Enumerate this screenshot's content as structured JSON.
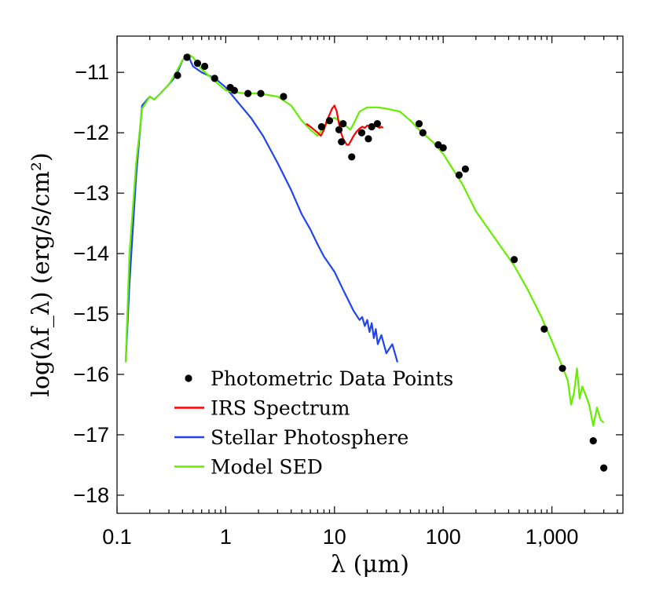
{
  "chart_data": {
    "type": "line",
    "xlabel": "λ (μm)",
    "ylabel": "log(λf_λ) (erg/s/cm²)",
    "xscale": "log",
    "xlim": [
      0.1,
      4500
    ],
    "ylim": [
      -18.3,
      -10.4
    ],
    "x_ticks": [
      0.1,
      1,
      10,
      100,
      1000
    ],
    "x_tick_labels": [
      "0.1",
      "1",
      "10",
      "100",
      "1,000"
    ],
    "y_ticks": [
      -11,
      -12,
      -13,
      -14,
      -15,
      -16,
      -17,
      -18
    ],
    "y_tick_labels": [
      "−11",
      "−12",
      "−13",
      "−14",
      "−15",
      "−16",
      "−17",
      "−18"
    ],
    "legend": {
      "position": "lower-left",
      "entries": [
        {
          "label": "Photometric Data Points",
          "marker": "dot",
          "color": "#000000"
        },
        {
          "label": "IRS Spectrum",
          "marker": "line",
          "color": "#ff0000"
        },
        {
          "label": "Stellar Photosphere",
          "marker": "line",
          "color": "#2244ee"
        },
        {
          "label": "Model SED",
          "marker": "line",
          "color": "#66ee00"
        }
      ]
    },
    "series": [
      {
        "name": "Photometric Data Points",
        "kind": "scatter",
        "color": "#000000",
        "x": [
          0.36,
          0.44,
          0.55,
          0.64,
          0.79,
          1.1,
          1.2,
          1.6,
          2.1,
          3.4,
          7.6,
          9.0,
          11.0,
          11.6,
          12.0,
          14.4,
          17.8,
          20.5,
          22.0,
          24.8,
          60,
          65,
          90,
          100,
          140,
          160,
          450,
          850,
          1250,
          2400,
          3000
        ],
        "y": [
          -11.05,
          -10.75,
          -10.85,
          -10.9,
          -11.1,
          -11.25,
          -11.3,
          -11.35,
          -11.35,
          -11.4,
          -11.9,
          -11.8,
          -11.95,
          -12.15,
          -11.85,
          -12.4,
          -12.0,
          -12.1,
          -11.9,
          -11.85,
          -11.85,
          -12.0,
          -12.2,
          -12.25,
          -12.7,
          -12.6,
          -14.1,
          -15.25,
          -15.9,
          -17.1,
          -17.55
        ]
      },
      {
        "name": "IRS Spectrum",
        "kind": "line",
        "color": "#ff0000",
        "x": [
          5.5,
          6,
          6.5,
          7,
          7.5,
          8,
          8.5,
          9,
          9.5,
          10,
          10.5,
          11,
          11.5,
          12,
          12.5,
          13,
          13.5,
          14,
          15,
          16,
          17,
          18,
          19,
          20,
          21,
          22,
          23,
          24,
          25,
          26,
          27,
          28
        ],
        "y": [
          -11.85,
          -11.9,
          -11.95,
          -12.0,
          -12.05,
          -11.95,
          -11.8,
          -11.7,
          -11.6,
          -11.55,
          -11.65,
          -11.85,
          -12.0,
          -12.1,
          -12.15,
          -12.2,
          -12.2,
          -12.15,
          -12.05,
          -11.98,
          -11.93,
          -11.9,
          -11.92,
          -11.88,
          -11.9,
          -11.86,
          -11.9,
          -11.88,
          -11.9,
          -11.92,
          -11.9,
          -11.92
        ]
      },
      {
        "name": "Stellar Photosphere",
        "kind": "line",
        "color": "#2244ee",
        "x": [
          0.12,
          0.13,
          0.15,
          0.17,
          0.2,
          0.22,
          0.25,
          0.3,
          0.35,
          0.4,
          0.45,
          0.5,
          0.6,
          0.8,
          1.0,
          1.3,
          1.7,
          2.2,
          3,
          4,
          5,
          6,
          7,
          8,
          10,
          12,
          15,
          17,
          18,
          19,
          20,
          21,
          22,
          23,
          24,
          25,
          27,
          30,
          34,
          38
        ],
        "y": [
          -15.8,
          -14.5,
          -12.7,
          -11.55,
          -11.4,
          -11.45,
          -11.35,
          -11.2,
          -11.05,
          -10.8,
          -10.72,
          -10.9,
          -11.0,
          -11.1,
          -11.25,
          -11.5,
          -11.75,
          -12.05,
          -12.5,
          -12.95,
          -13.35,
          -13.6,
          -13.85,
          -14.05,
          -14.3,
          -14.6,
          -14.95,
          -15.1,
          -15.05,
          -15.2,
          -15.1,
          -15.3,
          -15.15,
          -15.4,
          -15.25,
          -15.5,
          -15.35,
          -15.65,
          -15.5,
          -15.8
        ]
      },
      {
        "name": "Model SED",
        "kind": "line",
        "color": "#66ee00",
        "x": [
          0.12,
          0.13,
          0.15,
          0.17,
          0.2,
          0.22,
          0.25,
          0.3,
          0.35,
          0.4,
          0.45,
          0.5,
          0.6,
          0.8,
          1.0,
          1.5,
          2.0,
          3.0,
          4.0,
          5.0,
          6.0,
          7.0,
          8.0,
          9.0,
          10,
          11,
          12,
          13,
          14,
          15,
          17,
          20,
          25,
          30,
          40,
          50,
          60,
          80,
          100,
          150,
          200,
          300,
          450,
          600,
          800,
          1000,
          1200,
          1400,
          1500,
          1600,
          1700,
          1800,
          1900,
          2000,
          2200,
          2400,
          2600,
          2800,
          3000
        ],
        "y": [
          -15.8,
          -14.0,
          -12.5,
          -11.6,
          -11.4,
          -11.45,
          -11.35,
          -11.2,
          -11.0,
          -10.8,
          -10.7,
          -10.75,
          -10.95,
          -11.15,
          -11.3,
          -11.35,
          -11.35,
          -11.4,
          -11.55,
          -11.8,
          -11.95,
          -12.05,
          -11.9,
          -11.8,
          -11.75,
          -11.8,
          -11.85,
          -11.9,
          -11.95,
          -11.85,
          -11.65,
          -11.58,
          -11.58,
          -11.6,
          -11.65,
          -11.8,
          -11.95,
          -12.15,
          -12.35,
          -12.85,
          -13.3,
          -13.75,
          -14.2,
          -14.6,
          -15.05,
          -15.45,
          -15.8,
          -16.1,
          -16.5,
          -16.3,
          -15.9,
          -16.4,
          -16.2,
          -16.3,
          -16.5,
          -16.85,
          -16.55,
          -16.75,
          -16.8
        ]
      }
    ]
  }
}
